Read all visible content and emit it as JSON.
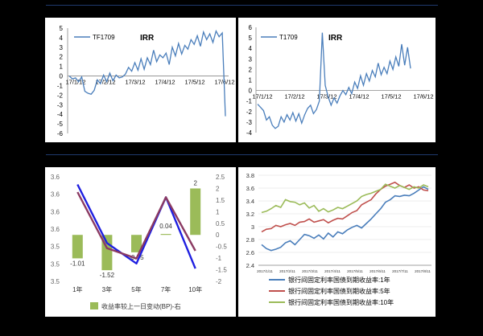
{
  "chart_data": [
    {
      "type": "line",
      "title": "IRR",
      "legend": "top-left",
      "series": [
        {
          "name": "TF1709",
          "color": "#4a7ebb",
          "values": [
            0,
            -0.3,
            -0.2,
            -0.6,
            -0.1,
            -1.6,
            -1.8,
            -1.9,
            -1.5,
            -0.4,
            -0.8,
            0.1,
            -0.6,
            0.3,
            -0.5,
            0.1,
            -0.2,
            -0.1,
            0.2,
            0.9,
            0.5,
            1.4,
            0.6,
            1.8,
            0.7,
            1.9,
            1.2,
            2.7,
            1.5,
            2.2,
            1.9,
            2.4,
            1.2,
            3.0,
            2.1,
            3.4,
            2.3,
            3.2,
            2.8,
            3.8,
            3.3,
            4.2,
            3.1,
            4.6,
            3.8,
            4.4,
            3.5,
            4.7,
            4.1,
            4.5,
            -4.2
          ]
        }
      ],
      "x_ticks": [
        "17/1/12",
        "17/2/12",
        "17/3/12",
        "17/4/12",
        "17/5/12",
        "17/6/12"
      ],
      "yticks": [
        5,
        4,
        3,
        2,
        1,
        0,
        -1,
        -2,
        -3,
        -4,
        -5,
        -6
      ],
      "ylim": [
        -6,
        5
      ]
    },
    {
      "type": "line",
      "title": "IRR",
      "legend": "top-left",
      "series": [
        {
          "name": "T1709",
          "color": "#4a7ebb",
          "values": [
            -1.3,
            -1.6,
            -1.9,
            -2.8,
            -2.5,
            -3.3,
            -3.6,
            -3.4,
            -2.5,
            -3.0,
            -2.3,
            -2.8,
            -2.1,
            -2.9,
            -2.2,
            -3.1,
            -2.3,
            -1.7,
            -1.4,
            -2.2,
            -1.8,
            -1.0,
            5.5,
            0.5,
            -0.6,
            -1.4,
            -0.7,
            -1.2,
            -0.5,
            0.0,
            -0.4,
            0.3,
            -0.3,
            0.8,
            0.2,
            1.4,
            0.5,
            1.6,
            0.9,
            1.9,
            1.3,
            2.6,
            1.5,
            2.2,
            1.6,
            2.8,
            2.0,
            3.2,
            2.3,
            4.4,
            2.4,
            4.1,
            2.1
          ]
        }
      ],
      "x_ticks": [
        "17/1/12",
        "17/2/12",
        "17/3/12",
        "17/4/12",
        "17/5/12",
        "17/6/12"
      ],
      "yticks": [
        6,
        5,
        4,
        3,
        2,
        1,
        0,
        -1,
        -2,
        -3,
        -4
      ],
      "ylim": [
        -4,
        6
      ]
    },
    {
      "type": "bar",
      "categories": [
        "1年",
        "3年",
        "5年",
        "7年",
        "10年"
      ],
      "bar_series": {
        "name": "收益率较上一日变动(BP)-右",
        "color": "#9bbb59",
        "values": [
          -1.01,
          -1.52,
          -0.75,
          0.04,
          2
        ]
      },
      "bar_labels": [
        "-1.01",
        "-1.52",
        "-0.75",
        "0.04",
        "2"
      ],
      "right_ticks": [
        "2.5",
        "2",
        "1.5",
        "1",
        "0.5",
        "0",
        "-0.5",
        "-1",
        "-1.5",
        "-2"
      ],
      "left_ticks": [
        "3.6",
        "3.6",
        "3.6",
        "3.6",
        "3.5",
        "3.5",
        "3.5"
      ],
      "line_series": [
        {
          "color": "#1f1fe0",
          "values": [
            3.62,
            3.505,
            3.465,
            3.595,
            3.455
          ]
        },
        {
          "color": "#8b3a62",
          "values": [
            3.605,
            3.495,
            3.475,
            3.595,
            3.49
          ]
        }
      ],
      "legend": "bottom"
    },
    {
      "type": "line",
      "yticks": [
        "3.8",
        "3.6",
        "3.4",
        "3.2",
        "3",
        "2.8",
        "2.6",
        "2.4"
      ],
      "ylim": [
        2.4,
        3.8
      ],
      "x_ticks": [
        "2017/1/11",
        "2017/2/11",
        "2017/3/11",
        "2017/4/11",
        "2017/5/11",
        "2017/6/11",
        "2017/7/11",
        "2017/8/11"
      ],
      "series": [
        {
          "name": "银行间固定利率国债到期收益率:1年",
          "color": "#4a7ebb",
          "values": [
            2.72,
            2.66,
            2.63,
            2.65,
            2.68,
            2.75,
            2.78,
            2.72,
            2.8,
            2.88,
            2.86,
            2.82,
            2.87,
            2.81,
            2.9,
            2.84,
            2.92,
            2.89,
            2.95,
            2.99,
            3.02,
            2.98,
            3.05,
            3.12,
            3.2,
            3.28,
            3.38,
            3.42,
            3.48,
            3.47,
            3.49,
            3.48,
            3.52,
            3.57,
            3.62,
            3.58
          ]
        },
        {
          "name": "银行间固定利率国债到期收益率:5年",
          "color": "#c0504d",
          "values": [
            2.92,
            2.96,
            2.97,
            3.02,
            3.0,
            3.03,
            3.05,
            3.02,
            3.07,
            3.08,
            3.12,
            3.07,
            3.09,
            3.11,
            3.06,
            3.1,
            3.13,
            3.12,
            3.17,
            3.22,
            3.25,
            3.34,
            3.38,
            3.42,
            3.51,
            3.58,
            3.63,
            3.66,
            3.69,
            3.64,
            3.61,
            3.65,
            3.6,
            3.62,
            3.57,
            3.56
          ]
        },
        {
          "name": "银行间固定利率国债到期收益率:10年",
          "color": "#9bbb59",
          "values": [
            3.22,
            3.24,
            3.28,
            3.33,
            3.3,
            3.42,
            3.39,
            3.38,
            3.34,
            3.37,
            3.29,
            3.33,
            3.24,
            3.28,
            3.23,
            3.26,
            3.3,
            3.28,
            3.32,
            3.36,
            3.4,
            3.47,
            3.5,
            3.52,
            3.55,
            3.58,
            3.66,
            3.63,
            3.6,
            3.64,
            3.61,
            3.58,
            3.62,
            3.6,
            3.65,
            3.62
          ]
        }
      ],
      "legend": "bottom"
    }
  ]
}
